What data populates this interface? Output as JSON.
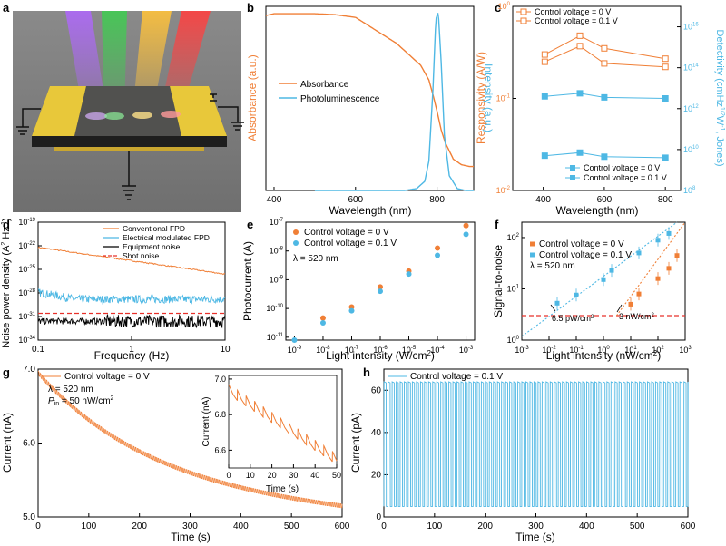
{
  "colors": {
    "orange": "#f07f36",
    "blue": "#4eb8e4",
    "black": "#000000",
    "red": "#e8302a",
    "gray": "#888888"
  },
  "panels": {
    "a": {
      "letter": "a"
    },
    "b": {
      "letter": "b",
      "chart_data": {
        "type": "line",
        "xlabel": "Wavelength (nm)",
        "ylabel_left": "Absorbance (a.u.)",
        "ylabel_right": "Intensity (a.u.)",
        "xlim": [
          380,
          890
        ],
        "xticks": [
          400,
          600,
          800
        ],
        "series": [
          {
            "name": "Absorbance",
            "color": "#f07f36",
            "x": [
              380,
              400,
              450,
              500,
              550,
              600,
              650,
              700,
              730,
              760,
              780,
              790,
              800,
              810,
              820,
              840,
              860,
              880,
              890
            ],
            "y": [
              0.95,
              0.96,
              0.96,
              0.96,
              0.955,
              0.94,
              0.87,
              0.8,
              0.74,
              0.68,
              0.6,
              0.52,
              0.43,
              0.33,
              0.26,
              0.17,
              0.14,
              0.13,
              0.13
            ]
          },
          {
            "name": "Photoluminescence",
            "color": "#4eb8e4",
            "x": [
              500,
              720,
              750,
              770,
              780,
              790,
              797,
              803,
              810,
              818,
              830,
              850,
              870,
              890
            ],
            "y": [
              0.0,
              0.0,
              0.01,
              0.05,
              0.16,
              0.55,
              0.93,
              0.97,
              0.7,
              0.3,
              0.08,
              0.01,
              0.0,
              0.0
            ]
          }
        ]
      }
    },
    "c": {
      "letter": "c",
      "chart_data": {
        "type": "line",
        "xlabel": "Wavelength (nm)",
        "ylabel_left": "Responsivity (A/W)",
        "ylabel_right": "Detectivity (cmHz",
        "ylabel_right_sup": "1/2",
        "ylabel_right_mid": "W",
        "ylabel_right_sup2": "-1",
        "ylabel_right_end": ", Jones)",
        "xlim": [
          300,
          850
        ],
        "xticks": [
          400,
          600,
          800
        ],
        "ylim_left_log": [
          -2,
          0
        ],
        "yticks_left": [
          "10",
          "10",
          "10"
        ],
        "yticks_left_exp": [
          "-2",
          "-1",
          "0"
        ],
        "ylim_right_log": [
          8,
          17
        ],
        "yticks_right": [
          "10",
          "10",
          "10",
          "10",
          "10"
        ],
        "yticks_right_exp": [
          "8",
          "10",
          "12",
          "14",
          "16"
        ],
        "legend_top": [
          "Control voltage = 0 V",
          "Control voltage = 0.1 V"
        ],
        "legend_bottom": [
          "Control voltage = 0 V",
          "Control voltage = 0.1 V"
        ],
        "x": [
          405,
          520,
          600,
          800
        ],
        "series": [
          {
            "name": "Control voltage = 0 V",
            "axis": "left",
            "marker": "open-square",
            "color": "#f07f36",
            "y": [
              0.3,
              0.48,
              0.35,
              0.27
            ]
          },
          {
            "name": "Control voltage = 0.1 V",
            "axis": "left",
            "marker": "open-square",
            "color": "#f07f36",
            "y": [
              0.25,
              0.37,
              0.24,
              0.22
            ]
          },
          {
            "name": "Control voltage = 0 V",
            "axis": "right",
            "marker": "filled-square",
            "color": "#4eb8e4",
            "y": [
              12.6,
              12.75,
              12.55,
              12.5
            ]
          },
          {
            "name": "Control voltage = 0.1 V",
            "axis": "right",
            "marker": "filled-square",
            "color": "#4eb8e4",
            "y": [
              9.7,
              9.85,
              9.65,
              9.6
            ]
          }
        ]
      }
    },
    "d": {
      "letter": "d",
      "chart_data": {
        "type": "line",
        "xlabel": "Frequency (Hz)",
        "ylabel": "Noise power density (A",
        "ylabel_sup": "2",
        "ylabel_mid": " Hz",
        "ylabel_sup2": "-1",
        "ylabel_end": ")",
        "xlim_log": [
          -1,
          1
        ],
        "xticks": [
          "0.1",
          "1",
          "10"
        ],
        "ylim_log": [
          -34,
          -19
        ],
        "yticks": [
          "10",
          "10",
          "10",
          "10",
          "10",
          "10"
        ],
        "yticks_exp": [
          "-19",
          "-22",
          "-25",
          "-28",
          "-31",
          "-34"
        ],
        "series": [
          {
            "name": "Conventional FPD",
            "color": "#f07f36",
            "style": "solid",
            "log10_y_at": [
              [
                -1,
                -22.2
              ],
              [
                0,
                -23.9
              ],
              [
                1,
                -25.6
              ]
            ]
          },
          {
            "name": "Electrical modulated FPD",
            "color": "#4eb8e4",
            "style": "noisy",
            "log10_y_level": -28.8
          },
          {
            "name": "Equipment noise",
            "color": "#000000",
            "style": "noisy",
            "log10_y_level": -31.6
          },
          {
            "name": "Shot noise",
            "color": "#e8302a",
            "style": "dashed",
            "log10_y_level": -30.6
          }
        ]
      }
    },
    "e": {
      "letter": "e",
      "chart_data": {
        "type": "scatter",
        "xlabel": "Light intensity (W/cm",
        "xlabel_sup": "2",
        "xlabel_end": ")",
        "ylabel": "Photocurrent (A)",
        "xlim_log": [
          -9.3,
          -2.7
        ],
        "xticks": [
          "10",
          "10",
          "10",
          "10",
          "10",
          "10",
          "10"
        ],
        "xticks_exp": [
          "-9",
          "-8",
          "-7",
          "-6",
          "-5",
          "-4",
          "-3"
        ],
        "ylim_log": [
          -11.1,
          -7
        ],
        "yticks": [
          "10",
          "10",
          "10",
          "10",
          "10"
        ],
        "yticks_exp": [
          "-11",
          "-10",
          "-9",
          "-8",
          "-7"
        ],
        "annotation": "λ = 520 nm",
        "series": [
          {
            "name": "Control voltage = 0 V",
            "color": "#f07f36",
            "log10_x": [
              -8,
              -7,
              -6,
              -5,
              -4,
              -3
            ],
            "log10_y": [
              -10.33,
              -9.95,
              -9.25,
              -8.7,
              -7.9,
              -7.12
            ]
          },
          {
            "name": "Control voltage = 0.1 V",
            "color": "#4eb8e4",
            "log10_x": [
              -9,
              -8,
              -7,
              -6,
              -5,
              -4,
              -3
            ],
            "log10_y": [
              -11.1,
              -10.5,
              -10.08,
              -9.4,
              -8.8,
              -8.15,
              -7.42
            ]
          }
        ]
      }
    },
    "f": {
      "letter": "f",
      "chart_data": {
        "type": "scatter",
        "xlabel": "Light intensity (nW/cm",
        "xlabel_sup": "2",
        "xlabel_end": ")",
        "ylabel": "Signal-to-noise",
        "xlim_log": [
          -3,
          3
        ],
        "xticks": [
          "10",
          "10",
          "10",
          "10",
          "10",
          "10",
          "10"
        ],
        "xticks_exp": [
          "-3",
          "-2",
          "-1",
          "0",
          "1",
          "2",
          "3"
        ],
        "ylim_log": [
          0,
          2.3
        ],
        "yticks": [
          "10",
          "10",
          "10"
        ],
        "yticks_exp": [
          "0",
          "1",
          "2"
        ],
        "annotation": "λ = 520 nm",
        "threshold": 3,
        "label_1": "6.5 pW/cm",
        "label_1_sup": "2",
        "label_2": "3 nW/cm",
        "label_2_sup": "2",
        "series": [
          {
            "name": "Control voltage = 0 V",
            "color": "#f07f36",
            "log10_x": [
              1.0,
              1.3,
              2.0,
              2.4,
              2.7
            ],
            "log10_y": [
              0.7,
              0.9,
              1.2,
              1.4,
              1.65
            ]
          },
          {
            "name": "Control voltage = 0.1 V",
            "color": "#4eb8e4",
            "log10_x": [
              -1.7,
              -1.0,
              0.0,
              0.3,
              1.3,
              2.0,
              2.4
            ],
            "log10_y": [
              0.72,
              0.88,
              1.18,
              1.36,
              1.7,
              1.95,
              2.08
            ]
          }
        ]
      }
    },
    "g": {
      "letter": "g",
      "chart_data": {
        "type": "line",
        "xlabel": "Time (s)",
        "ylabel": "Current (nA)",
        "xlim": [
          0,
          600
        ],
        "xticks": [
          0,
          100,
          200,
          300,
          400,
          500,
          600
        ],
        "ylim": [
          5.0,
          7.0
        ],
        "yticks": [
          "5.0",
          "6.0",
          "7.0"
        ],
        "legend": "Control voltage = 0 V",
        "annotation_1": "λ = 520 nm",
        "annotation_2_p": "P",
        "annotation_2_sub": "in",
        "annotation_2_rest": " = 50 nW/cm",
        "annotation_2_sup": "2",
        "start": 6.95,
        "end": 5.15,
        "modulation_period_s": 4,
        "inset": {
          "xlabel": "Time (s)",
          "ylabel": "Current (nA)",
          "xticks": [
            0,
            10,
            20,
            30,
            40,
            50
          ],
          "yticks": [
            "6.6",
            "6.8",
            "7.0"
          ],
          "ylim": [
            6.5,
            7.02
          ]
        }
      }
    },
    "h": {
      "letter": "h",
      "chart_data": {
        "type": "line",
        "xlabel": "Time (s)",
        "ylabel": "Current (pA)",
        "xlim": [
          0,
          600
        ],
        "xticks": [
          0,
          100,
          200,
          300,
          400,
          500,
          600
        ],
        "ylim": [
          0,
          70
        ],
        "yticks": [
          "0",
          "20",
          "40",
          "60"
        ],
        "legend": "Control voltage = 0.1 V",
        "high": 64,
        "low": 5,
        "modulation_period_s": 8
      }
    }
  }
}
